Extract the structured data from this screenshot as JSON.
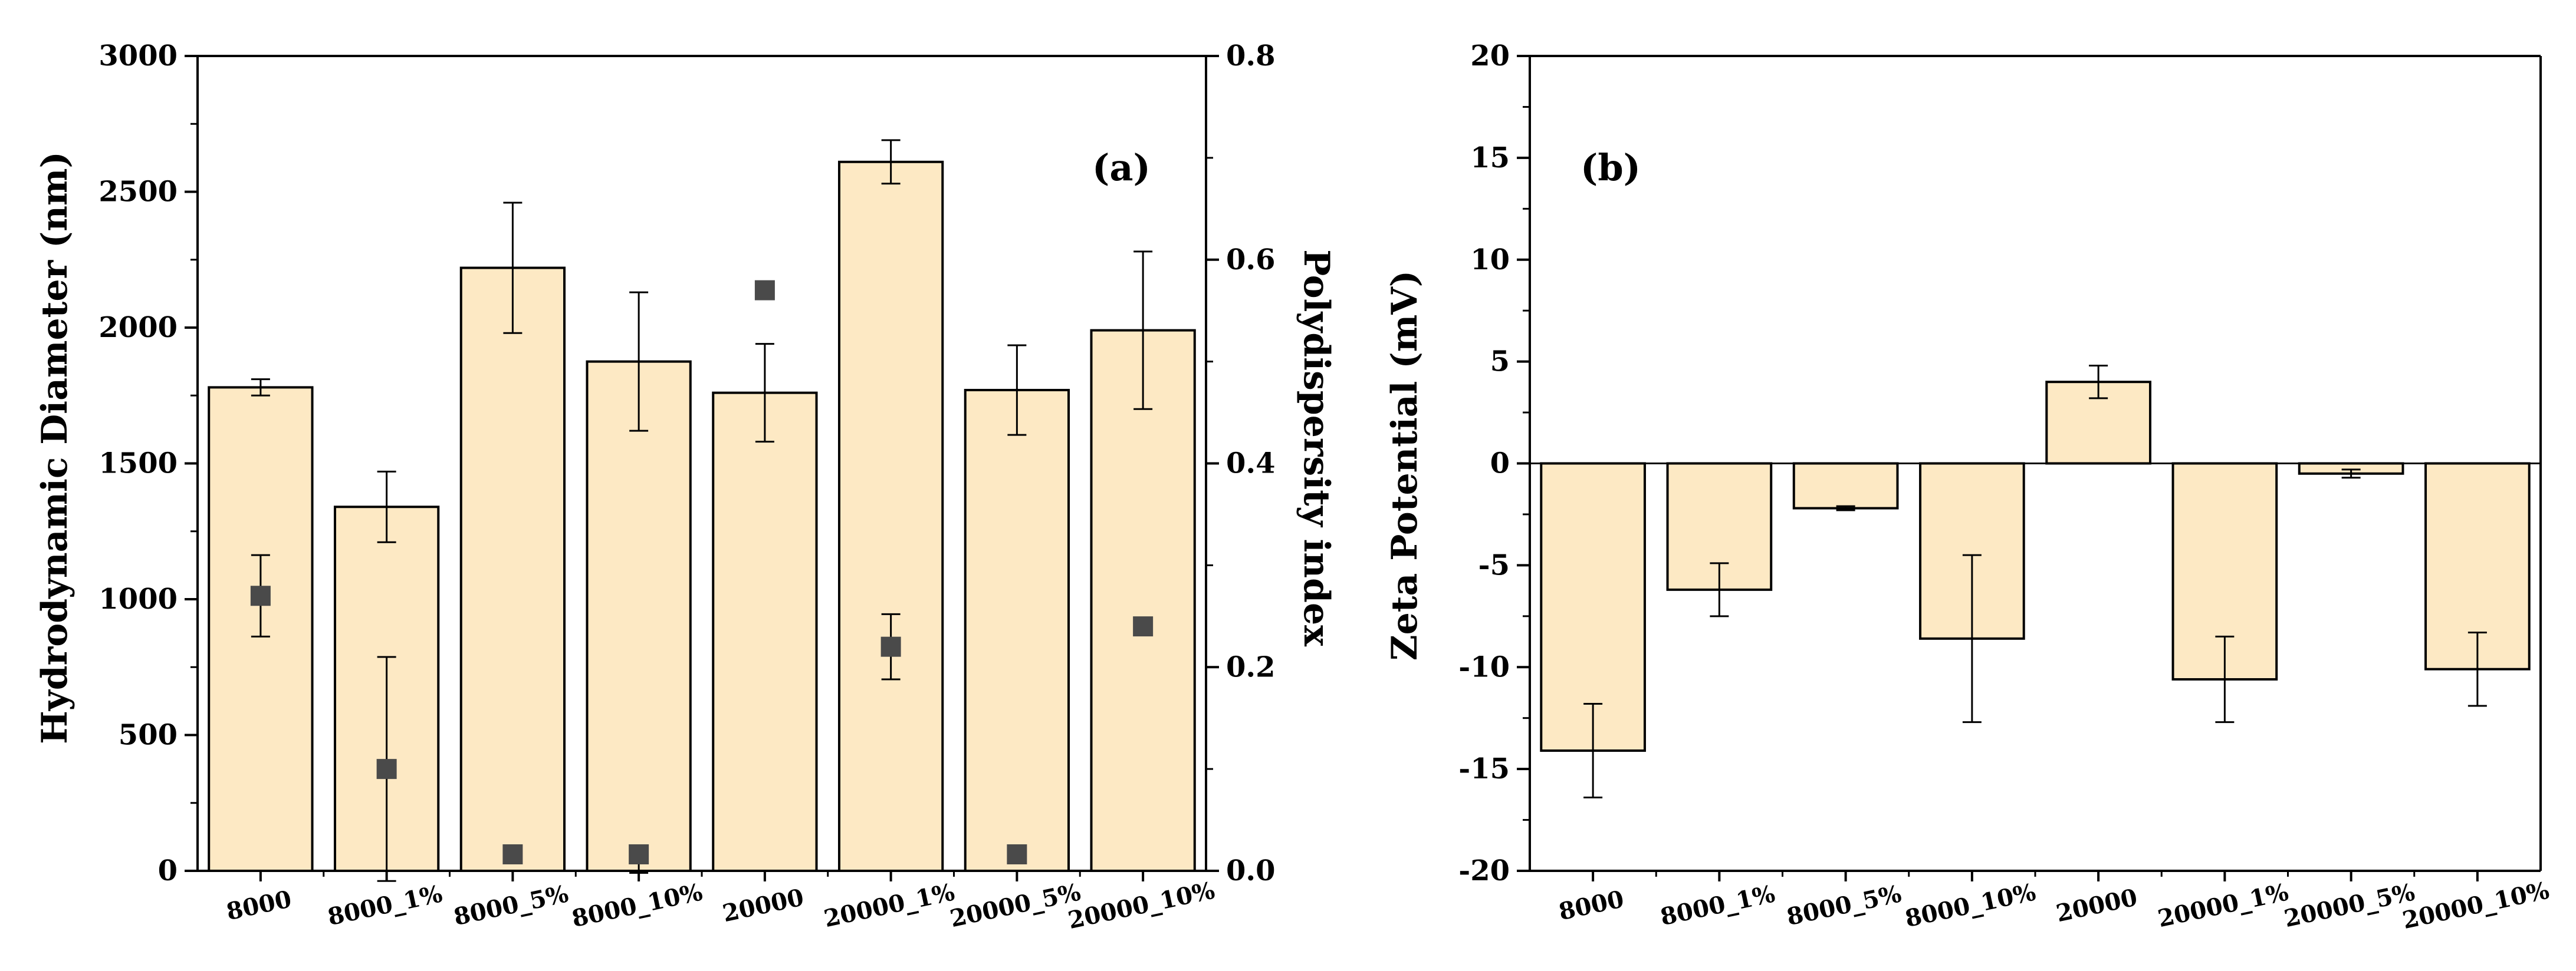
{
  "figure": {
    "charts": [
      {
        "panel_label": "(a)",
        "ylabel": "Hydrodynamic Diameter (nm)",
        "y2label": "Polydispersity index",
        "yticks": [
          "0",
          "500",
          "1000",
          "1500",
          "2000",
          "2500",
          "3000"
        ],
        "y2ticks": [
          "0.0",
          "0.2",
          "0.4",
          "0.6",
          "0.8"
        ]
      },
      {
        "panel_label": "(b)",
        "ylabel": "Zeta Potential (mV)",
        "yticks": [
          "-20",
          "-15",
          "-10",
          "-5",
          "0",
          "5",
          "10",
          "15",
          "20"
        ]
      }
    ]
  },
  "colors": {
    "bar_fill": "#fde9c4",
    "bar_edge": "#000000",
    "marker": "#4a4a4a",
    "axis": "#000000"
  },
  "chart_data": [
    {
      "type": "bar",
      "title": "(a)",
      "categories": [
        "8000",
        "8000_1%",
        "8000_5%",
        "8000_10%",
        "20000",
        "20000_1%",
        "20000_5%",
        "20000_10%"
      ],
      "xlabel": "",
      "ylabel": "Hydrodynamic Diameter (nm)",
      "ylim": [
        0,
        3000
      ],
      "series": [
        {
          "name": "Hydrodynamic Diameter (nm)",
          "type": "bar",
          "axis": "left",
          "values": [
            1780,
            1340,
            2220,
            1875,
            1760,
            2610,
            1770,
            1990
          ],
          "errors": [
            30,
            130,
            240,
            255,
            180,
            80,
            165,
            290
          ]
        },
        {
          "name": "Polydispersity index",
          "type": "scatter",
          "axis": "right",
          "values": [
            0.27,
            0.1,
            0.0,
            0.01,
            0.57,
            0.22,
            0.0,
            0.24
          ],
          "errors": [
            0.04,
            0.11,
            0.0,
            0.012,
            0.0,
            0.032,
            0.0,
            0.0
          ]
        }
      ],
      "y2label": "Polydispersity index",
      "y2lim": [
        0,
        0.8
      ]
    },
    {
      "type": "bar",
      "title": "(b)",
      "categories": [
        "8000",
        "8000_1%",
        "8000_5%",
        "8000_10%",
        "20000",
        "20000_1%",
        "20000_5%",
        "20000_10%"
      ],
      "xlabel": "",
      "ylabel": "Zeta Potential (mV)",
      "ylim": [
        -20,
        20
      ],
      "series": [
        {
          "name": "Zeta Potential (mV)",
          "type": "bar",
          "values": [
            -14.1,
            -6.2,
            -2.2,
            -8.6,
            4.0,
            -10.6,
            -0.5,
            -10.1
          ],
          "errors": [
            2.3,
            1.3,
            0.1,
            4.1,
            0.8,
            2.1,
            0.2,
            1.8
          ]
        }
      ]
    }
  ]
}
